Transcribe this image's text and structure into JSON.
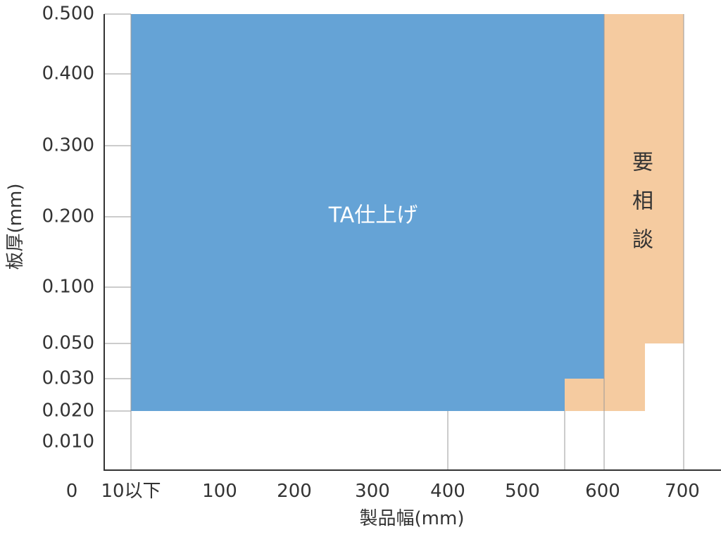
{
  "chart_data": {
    "type": "area",
    "xlabel": "製品幅(mm)",
    "ylabel": "板厚(mm)",
    "x_ticks": [
      {
        "value": 0,
        "label": "0"
      },
      {
        "value": 10,
        "label": "10以下"
      },
      {
        "value": 100,
        "label": "100"
      },
      {
        "value": 200,
        "label": "200"
      },
      {
        "value": 300,
        "label": "300"
      },
      {
        "value": 400,
        "label": "400"
      },
      {
        "value": 500,
        "label": "500"
      },
      {
        "value": 600,
        "label": "600"
      },
      {
        "value": 700,
        "label": "700"
      }
    ],
    "y_ticks": [
      {
        "value": 0.01,
        "label": "0.010"
      },
      {
        "value": 0.02,
        "label": "0.020"
      },
      {
        "value": 0.03,
        "label": "0.030"
      },
      {
        "value": 0.05,
        "label": "0.050"
      },
      {
        "value": 0.1,
        "label": "0.100"
      },
      {
        "value": 0.2,
        "label": "0.200"
      },
      {
        "value": 0.3,
        "label": "0.300"
      },
      {
        "value": 0.4,
        "label": "0.400"
      },
      {
        "value": 0.5,
        "label": "0.500"
      }
    ],
    "regions": [
      {
        "name": "TA仕上げ",
        "label": "TA仕上げ",
        "color": "#65a3d6",
        "label_color": "#ffffff",
        "label_vertical": false,
        "polygon": [
          [
            10,
            0.02
          ],
          [
            10,
            0.5
          ],
          [
            600,
            0.5
          ],
          [
            600,
            0.03
          ],
          [
            550,
            0.03
          ],
          [
            550,
            0.02
          ]
        ]
      },
      {
        "name": "要相談",
        "label": "要相談",
        "color": "#f5cba0",
        "label_color": "#333333",
        "label_vertical": true,
        "polygon": [
          [
            600,
            0.5
          ],
          [
            700,
            0.5
          ],
          [
            700,
            0.05
          ],
          [
            650,
            0.05
          ],
          [
            650,
            0.02
          ],
          [
            550,
            0.02
          ],
          [
            550,
            0.03
          ],
          [
            600,
            0.03
          ]
        ]
      }
    ],
    "guides": {
      "vertical": [
        {
          "x": 10,
          "y_top": 0.5
        },
        {
          "x": 400,
          "y_top": 0.02
        },
        {
          "x": 550,
          "y_top": 0.02
        },
        {
          "x": 600,
          "y_top": 0.5
        },
        {
          "x": 700,
          "y_top": 0.5
        }
      ],
      "horizontal": [
        {
          "y": 0.5,
          "x_right": 10
        },
        {
          "y": 0.4,
          "x_right": 10
        },
        {
          "y": 0.3,
          "x_right": 10
        },
        {
          "y": 0.2,
          "x_right": 10
        },
        {
          "y": 0.1,
          "x_right": 10
        },
        {
          "y": 0.05,
          "x_right": 10
        },
        {
          "y": 0.03,
          "x_right": 10
        },
        {
          "y": 0.02,
          "x_right": 10
        }
      ]
    },
    "grid": false,
    "legend": "none"
  }
}
